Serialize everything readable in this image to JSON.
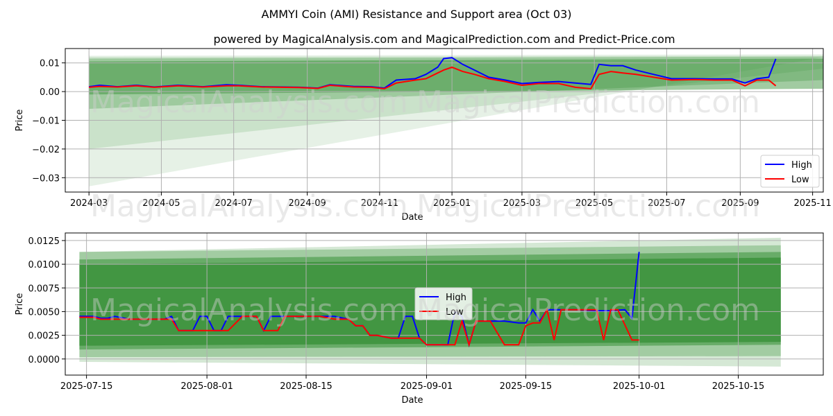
{
  "title": "AMMYI Coin (AMI) Resistance and Support area (Oct 03)",
  "subtitle": "powered by MagicalAnalysis.com and MagicalPrediction.com and Predict-Price.com",
  "watermark_left": "MagicalAnalysis.com",
  "watermark_right": "MagicalPrediction.com",
  "colors": {
    "high": "#0000ff",
    "low": "#ff0000",
    "band": "#2e8b2e",
    "grid": "#b0b0b0"
  },
  "chart_data": [
    {
      "type": "line",
      "xlabel": "Date",
      "ylabel": "Price",
      "xlim": [
        "2024-02-10",
        "2025-11-10"
      ],
      "ylim": [
        -0.035,
        0.015
      ],
      "xticks": [
        "2024-03",
        "2024-05",
        "2024-07",
        "2024-09",
        "2024-11",
        "2025-01",
        "2025-03",
        "2025-05",
        "2025-07",
        "2025-09",
        "2025-11"
      ],
      "yticks": [
        "0.01",
        "0.00",
        "−0.01",
        "−0.02",
        "−0.03"
      ],
      "ytick_values": [
        0.01,
        0.0,
        -0.01,
        -0.02,
        -0.03
      ],
      "legend": {
        "position": "lower-right",
        "items": [
          "High",
          "Low"
        ]
      },
      "bands": [
        {
          "x0": "2024-03-01",
          "x1": "2025-11-15",
          "top0": 0.0125,
          "top1": 0.013,
          "bot0": -0.033,
          "bot1": 0.012,
          "opacity": 0.12
        },
        {
          "x0": "2024-03-01",
          "x1": "2025-11-15",
          "top0": 0.012,
          "top1": 0.0125,
          "bot0": -0.02,
          "bot1": 0.008,
          "opacity": 0.15
        },
        {
          "x0": "2024-03-01",
          "x1": "2025-11-15",
          "top0": 0.0115,
          "top1": 0.0122,
          "bot0": -0.006,
          "bot1": 0.004,
          "opacity": 0.28
        },
        {
          "x0": "2024-03-01",
          "x1": "2025-11-15",
          "top0": 0.0105,
          "top1": 0.0115,
          "bot0": -0.001,
          "bot1": 0.001,
          "opacity": 0.45
        }
      ],
      "series": [
        {
          "name": "High",
          "x": [
            "2024-03-01",
            "2024-03-10",
            "2024-03-25",
            "2024-04-10",
            "2024-04-25",
            "2024-05-15",
            "2024-06-05",
            "2024-06-25",
            "2024-07-05",
            "2024-07-25",
            "2024-08-10",
            "2024-08-25",
            "2024-09-10",
            "2024-09-20",
            "2024-10-10",
            "2024-10-25",
            "2024-11-05",
            "2024-11-15",
            "2024-12-01",
            "2024-12-10",
            "2024-12-20",
            "2024-12-25",
            "2025-01-01",
            "2025-01-10",
            "2025-01-20",
            "2025-02-01",
            "2025-02-15",
            "2025-03-01",
            "2025-03-15",
            "2025-04-01",
            "2025-04-15",
            "2025-04-28",
            "2025-05-05",
            "2025-05-15",
            "2025-05-25",
            "2025-06-05",
            "2025-06-20",
            "2025-07-05",
            "2025-07-25",
            "2025-08-10",
            "2025-08-25",
            "2025-09-05",
            "2025-09-15",
            "2025-09-25",
            "2025-10-01"
          ],
          "y": [
            0.0017,
            0.0022,
            0.0017,
            0.0022,
            0.0016,
            0.0022,
            0.0017,
            0.0024,
            0.0022,
            0.0017,
            0.0016,
            0.0015,
            0.0012,
            0.0024,
            0.0018,
            0.0017,
            0.0012,
            0.004,
            0.0045,
            0.006,
            0.0085,
            0.0115,
            0.0118,
            0.0095,
            0.0075,
            0.005,
            0.004,
            0.0028,
            0.0032,
            0.0035,
            0.003,
            0.0025,
            0.0095,
            0.009,
            0.009,
            0.0075,
            0.006,
            0.0045,
            0.0045,
            0.0044,
            0.0044,
            0.003,
            0.0045,
            0.005,
            0.0114
          ]
        },
        {
          "name": "Low",
          "x": [
            "2024-03-01",
            "2024-03-10",
            "2024-03-25",
            "2024-04-10",
            "2024-04-25",
            "2024-05-15",
            "2024-06-05",
            "2024-06-25",
            "2024-07-05",
            "2024-07-25",
            "2024-08-10",
            "2024-08-25",
            "2024-09-10",
            "2024-09-20",
            "2024-10-10",
            "2024-10-25",
            "2024-11-05",
            "2024-11-15",
            "2024-12-01",
            "2024-12-10",
            "2024-12-20",
            "2024-12-25",
            "2025-01-01",
            "2025-01-10",
            "2025-01-20",
            "2025-02-01",
            "2025-02-15",
            "2025-03-01",
            "2025-03-15",
            "2025-04-01",
            "2025-04-15",
            "2025-04-28",
            "2025-05-05",
            "2025-05-15",
            "2025-05-25",
            "2025-06-05",
            "2025-06-20",
            "2025-07-05",
            "2025-07-25",
            "2025-08-10",
            "2025-08-25",
            "2025-09-05",
            "2025-09-15",
            "2025-09-25",
            "2025-10-01"
          ],
          "y": [
            0.0015,
            0.0018,
            0.0016,
            0.002,
            0.0015,
            0.002,
            0.0016,
            0.002,
            0.002,
            0.0016,
            0.0015,
            0.0014,
            0.0011,
            0.0022,
            0.0016,
            0.0015,
            0.001,
            0.003,
            0.004,
            0.0045,
            0.0065,
            0.0075,
            0.0085,
            0.007,
            0.006,
            0.0045,
            0.0035,
            0.0022,
            0.0028,
            0.0028,
            0.0015,
            0.001,
            0.006,
            0.007,
            0.0065,
            0.006,
            0.005,
            0.004,
            0.0042,
            0.004,
            0.004,
            0.002,
            0.004,
            0.004,
            0.002
          ]
        }
      ]
    },
    {
      "type": "line",
      "xlabel": "Date",
      "ylabel": "Price",
      "xlim": [
        "2025-07-12",
        "2025-10-27"
      ],
      "ylim": [
        -0.0017,
        0.0133
      ],
      "xticks": [
        "2025-07-15",
        "2025-08-01",
        "2025-08-15",
        "2025-09-01",
        "2025-09-15",
        "2025-10-01",
        "2025-10-15"
      ],
      "yticks": [
        "0.0125",
        "0.0100",
        "0.0075",
        "0.0050",
        "0.0025",
        "0.0000"
      ],
      "ytick_values": [
        0.0125,
        0.01,
        0.0075,
        0.005,
        0.0025,
        0.0
      ],
      "legend": {
        "position": "center",
        "items": [
          "High",
          "Low"
        ]
      },
      "bands": [
        {
          "x0": "2025-07-14",
          "x1": "2025-10-21",
          "top0": 0.0113,
          "top1": 0.0128,
          "bot0": -0.0003,
          "bot1": -0.0008,
          "opacity": 0.2
        },
        {
          "x0": "2025-07-14",
          "x1": "2025-10-21",
          "top0": 0.0113,
          "top1": 0.012,
          "bot0": 0.0002,
          "bot1": 0.0003,
          "opacity": 0.3
        },
        {
          "x0": "2025-07-14",
          "x1": "2025-10-21",
          "top0": 0.0105,
          "top1": 0.0113,
          "bot0": 0.001,
          "bot1": 0.0015,
          "opacity": 0.5
        },
        {
          "x0": "2025-07-14",
          "x1": "2025-10-21",
          "top0": 0.01,
          "top1": 0.0107,
          "bot0": 0.0014,
          "bot1": 0.0018,
          "opacity": 0.65
        }
      ],
      "series": [
        {
          "name": "High",
          "x": [
            "2025-07-14",
            "2025-07-16",
            "2025-07-17",
            "2025-07-18",
            "2025-07-19",
            "2025-07-21",
            "2025-07-26",
            "2025-07-27",
            "2025-07-28",
            "2025-07-30",
            "2025-07-31",
            "2025-08-01",
            "2025-08-02",
            "2025-08-03",
            "2025-08-04",
            "2025-08-06",
            "2025-08-07",
            "2025-08-08",
            "2025-08-09",
            "2025-08-10",
            "2025-08-11",
            "2025-08-12",
            "2025-08-14",
            "2025-08-17",
            "2025-08-19",
            "2025-08-21",
            "2025-08-22",
            "2025-08-23",
            "2025-08-24",
            "2025-08-25",
            "2025-08-27",
            "2025-08-28",
            "2025-08-29",
            "2025-08-30",
            "2025-08-31",
            "2025-09-01",
            "2025-09-03",
            "2025-09-04",
            "2025-09-05",
            "2025-09-06",
            "2025-09-07",
            "2025-09-08",
            "2025-09-10",
            "2025-09-12",
            "2025-09-14",
            "2025-09-15",
            "2025-09-16",
            "2025-09-17",
            "2025-09-18",
            "2025-09-20",
            "2025-09-22",
            "2025-09-25",
            "2025-09-27",
            "2025-09-29",
            "2025-09-30",
            "2025-10-01"
          ],
          "y": [
            0.0045,
            0.0045,
            0.0043,
            0.0043,
            0.0045,
            0.0042,
            0.0042,
            0.0045,
            0.003,
            0.003,
            0.0045,
            0.0045,
            0.003,
            0.003,
            0.0045,
            0.0045,
            0.0045,
            0.0045,
            0.003,
            0.0045,
            0.0045,
            0.0045,
            0.0045,
            0.0045,
            0.0045,
            0.0042,
            0.0035,
            0.0035,
            0.0025,
            0.0025,
            0.0022,
            0.0022,
            0.0045,
            0.0045,
            0.0022,
            0.0015,
            0.0015,
            0.0015,
            0.005,
            0.0045,
            0.0015,
            0.004,
            0.004,
            0.004,
            0.0038,
            0.0038,
            0.0052,
            0.004,
            0.0052,
            0.0052,
            0.0052,
            0.0051,
            0.0051,
            0.0052,
            0.0043,
            0.0113
          ]
        },
        {
          "name": "Low",
          "x": [
            "2025-07-14",
            "2025-07-16",
            "2025-07-17",
            "2025-07-18",
            "2025-07-19",
            "2025-07-21",
            "2025-07-26",
            "2025-07-27",
            "2025-07-28",
            "2025-07-30",
            "2025-07-31",
            "2025-08-01",
            "2025-08-02",
            "2025-08-03",
            "2025-08-04",
            "2025-08-06",
            "2025-08-07",
            "2025-08-08",
            "2025-08-09",
            "2025-08-10",
            "2025-08-11",
            "2025-08-12",
            "2025-08-14",
            "2025-08-17",
            "2025-08-19",
            "2025-08-21",
            "2025-08-22",
            "2025-08-23",
            "2025-08-24",
            "2025-08-25",
            "2025-08-27",
            "2025-08-28",
            "2025-08-29",
            "2025-08-30",
            "2025-08-31",
            "2025-09-01",
            "2025-09-03",
            "2025-09-04",
            "2025-09-05",
            "2025-09-06",
            "2025-09-07",
            "2025-09-08",
            "2025-09-10",
            "2025-09-12",
            "2025-09-14",
            "2025-09-15",
            "2025-09-16",
            "2025-09-17",
            "2025-09-18",
            "2025-09-19",
            "2025-09-20",
            "2025-09-22",
            "2025-09-25",
            "2025-09-26",
            "2025-09-27",
            "2025-09-28",
            "2025-09-30",
            "2025-10-01"
          ],
          "y": [
            0.0044,
            0.0044,
            0.0042,
            0.0042,
            0.0042,
            0.0042,
            0.0042,
            0.0042,
            0.003,
            0.003,
            0.003,
            0.003,
            0.003,
            0.003,
            0.003,
            0.0045,
            0.0045,
            0.0045,
            0.003,
            0.003,
            0.003,
            0.0045,
            0.0045,
            0.0045,
            0.0042,
            0.0042,
            0.0035,
            0.0035,
            0.0025,
            0.0025,
            0.0022,
            0.0022,
            0.0022,
            0.0022,
            0.0022,
            0.0015,
            0.0015,
            0.0015,
            0.0015,
            0.004,
            0.0015,
            0.004,
            0.004,
            0.0015,
            0.0015,
            0.0035,
            0.0038,
            0.0038,
            0.0052,
            0.002,
            0.0052,
            0.0052,
            0.0052,
            0.002,
            0.0052,
            0.0052,
            0.002,
            0.002
          ]
        }
      ]
    }
  ]
}
